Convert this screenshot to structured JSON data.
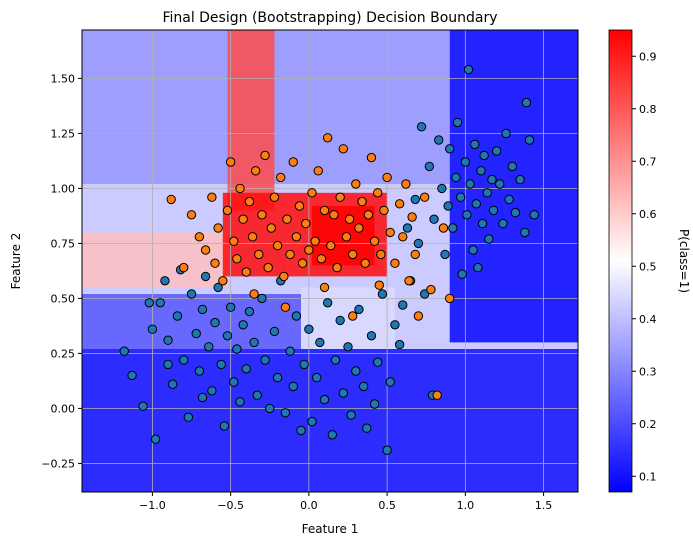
{
  "chart_data": {
    "type": "scatter",
    "title": "Final Design (Bootstrapping) Decision Boundary",
    "xlabel": "Feature 1",
    "ylabel": "Feature 2",
    "xlim": [
      -1.45,
      1.72
    ],
    "ylim": [
      -0.38,
      1.72
    ],
    "x_ticks": [
      "−1.0",
      "−0.5",
      "0.0",
      "0.5",
      "1.0",
      "1.5"
    ],
    "x_tick_values": [
      -1.0,
      -0.5,
      0.0,
      0.5,
      1.0,
      1.5
    ],
    "y_ticks": [
      "−0.25",
      "0.00",
      "0.25",
      "0.50",
      "0.75",
      "1.00",
      "1.25",
      "1.50"
    ],
    "y_tick_values": [
      -0.25,
      0.0,
      0.25,
      0.5,
      0.75,
      1.0,
      1.25,
      1.5
    ],
    "grid": true,
    "colorbar": {
      "label": "P(class=1)",
      "range": [
        0.07,
        0.95
      ],
      "ticks": [
        "0.1",
        "0.2",
        "0.3",
        "0.4",
        "0.5",
        "0.6",
        "0.7",
        "0.8",
        "0.9"
      ],
      "tick_values": [
        0.1,
        0.2,
        0.3,
        0.4,
        0.5,
        0.6,
        0.7,
        0.8,
        0.9
      ],
      "colormap": [
        "#0000ff",
        "#ffffff",
        "#ff0000"
      ]
    },
    "boundary_regions": [
      {
        "x": [
          -1.45,
          1.72
        ],
        "y": [
          -0.38,
          0.27
        ],
        "p": 0.1
      },
      {
        "x": [
          -1.45,
          -0.05
        ],
        "y": [
          0.27,
          0.52
        ],
        "p": 0.22
      },
      {
        "x": [
          0.9,
          1.72
        ],
        "y": [
          0.3,
          1.72
        ],
        "p": 0.08
      },
      {
        "x": [
          -1.45,
          0.9
        ],
        "y": [
          1.02,
          1.72
        ],
        "p": 0.33
      },
      {
        "x": [
          -0.52,
          -0.22
        ],
        "y": [
          0.9,
          1.72
        ],
        "p": 0.82
      },
      {
        "x": [
          -1.45,
          -0.52
        ],
        "y": [
          0.55,
          0.8
        ],
        "p": 0.62
      },
      {
        "x": [
          -0.55,
          0.5
        ],
        "y": [
          0.6,
          0.98
        ],
        "p": 0.93
      },
      {
        "x": [
          0.02,
          0.42
        ],
        "y": [
          0.65,
          0.92
        ],
        "p": 0.95
      },
      {
        "x": [
          -0.05,
          0.55
        ],
        "y": [
          0.27,
          0.55
        ],
        "p": 0.45
      }
    ],
    "series": [
      {
        "color": "#1f77b4",
        "points": [
          [
            -1.18,
            0.26
          ],
          [
            -1.13,
            0.15
          ],
          [
            -1.06,
            0.01
          ],
          [
            -0.98,
            -0.14
          ],
          [
            -1.0,
            0.36
          ],
          [
            -0.95,
            0.48
          ],
          [
            -0.92,
            0.58
          ],
          [
            -0.9,
            0.31
          ],
          [
            -0.87,
            0.11
          ],
          [
            -0.84,
            0.42
          ],
          [
            -0.82,
            0.63
          ],
          [
            -0.8,
            0.22
          ],
          [
            -0.77,
            -0.04
          ],
          [
            -0.75,
            0.52
          ],
          [
            -0.72,
            0.34
          ],
          [
            -0.7,
            0.17
          ],
          [
            -0.68,
            0.45
          ],
          [
            -0.66,
            0.6
          ],
          [
            -0.64,
            0.28
          ],
          [
            -0.62,
            0.08
          ],
          [
            -0.6,
            0.39
          ],
          [
            -0.58,
            0.55
          ],
          [
            -0.56,
            0.2
          ],
          [
            -0.54,
            -0.08
          ],
          [
            -0.52,
            0.33
          ],
          [
            -0.5,
            0.46
          ],
          [
            -0.48,
            0.12
          ],
          [
            -0.46,
            0.27
          ],
          [
            -0.44,
            0.03
          ],
          [
            -0.42,
            0.38
          ],
          [
            -0.4,
            0.18
          ],
          [
            -0.38,
            0.44
          ],
          [
            -0.35,
            0.3
          ],
          [
            -0.33,
            0.06
          ],
          [
            -0.3,
            0.5
          ],
          [
            -0.28,
            0.22
          ],
          [
            -0.25,
            0.0
          ],
          [
            -0.22,
            0.35
          ],
          [
            -0.2,
            0.14
          ],
          [
            -0.18,
            0.58
          ],
          [
            -0.15,
            -0.02
          ],
          [
            -0.12,
            0.26
          ],
          [
            -0.1,
            0.1
          ],
          [
            -0.08,
            0.42
          ],
          [
            -0.05,
            -0.1
          ],
          [
            -0.03,
            0.2
          ],
          [
            0.0,
            0.36
          ],
          [
            0.02,
            -0.06
          ],
          [
            0.05,
            0.14
          ],
          [
            0.07,
            0.3
          ],
          [
            0.1,
            0.04
          ],
          [
            0.12,
            0.48
          ],
          [
            0.15,
            -0.12
          ],
          [
            0.17,
            0.22
          ],
          [
            0.2,
            0.4
          ],
          [
            0.22,
            0.07
          ],
          [
            0.25,
            0.28
          ],
          [
            0.27,
            -0.03
          ],
          [
            0.3,
            0.17
          ],
          [
            0.32,
            0.45
          ],
          [
            0.35,
            0.1
          ],
          [
            0.37,
            -0.09
          ],
          [
            0.4,
            0.33
          ],
          [
            0.42,
            0.02
          ],
          [
            0.44,
            0.21
          ],
          [
            0.47,
            0.52
          ],
          [
            0.5,
            -0.19
          ],
          [
            0.52,
            0.12
          ],
          [
            0.55,
            0.38
          ],
          [
            0.58,
            0.29
          ],
          [
            0.6,
            0.47
          ],
          [
            0.63,
            0.82
          ],
          [
            0.65,
            0.58
          ],
          [
            0.68,
            0.95
          ],
          [
            0.7,
            0.75
          ],
          [
            0.72,
            1.28
          ],
          [
            0.74,
            0.52
          ],
          [
            0.77,
            1.1
          ],
          [
            0.79,
            0.06
          ],
          [
            0.8,
            0.86
          ],
          [
            0.83,
            1.22
          ],
          [
            0.85,
            1.0
          ],
          [
            0.87,
            0.7
          ],
          [
            0.89,
            0.92
          ],
          [
            0.9,
            1.18
          ],
          [
            0.92,
            0.82
          ],
          [
            0.94,
            1.05
          ],
          [
            0.95,
            1.3
          ],
          [
            0.97,
            0.96
          ],
          [
            0.98,
            0.61
          ],
          [
            1.0,
            1.12
          ],
          [
            1.01,
            0.88
          ],
          [
            1.02,
            1.54
          ],
          [
            1.03,
            1.02
          ],
          [
            1.05,
            0.72
          ],
          [
            1.06,
            1.2
          ],
          [
            1.07,
            0.93
          ],
          [
            1.08,
            0.64
          ],
          [
            1.1,
            1.08
          ],
          [
            1.11,
            0.84
          ],
          [
            1.12,
            1.15
          ],
          [
            1.14,
            0.98
          ],
          [
            1.15,
            0.77
          ],
          [
            1.17,
            1.04
          ],
          [
            1.18,
            0.9
          ],
          [
            1.2,
            1.17
          ],
          [
            1.22,
            1.02
          ],
          [
            1.24,
            0.84
          ],
          [
            1.26,
            1.25
          ],
          [
            1.28,
            0.95
          ],
          [
            1.3,
            1.1
          ],
          [
            1.32,
            0.89
          ],
          [
            1.35,
            1.04
          ],
          [
            1.38,
            0.8
          ],
          [
            1.39,
            1.39
          ],
          [
            1.41,
            1.22
          ],
          [
            1.44,
            0.88
          ],
          [
            -1.02,
            0.48
          ],
          [
            -0.68,
            0.05
          ],
          [
            -0.9,
            0.2
          ]
        ]
      },
      {
        "color": "#ff7f0e",
        "points": [
          [
            -0.88,
            0.95
          ],
          [
            -0.75,
            0.88
          ],
          [
            -0.7,
            0.78
          ],
          [
            -0.66,
            0.72
          ],
          [
            -0.62,
            0.96
          ],
          [
            -0.6,
            0.66
          ],
          [
            -0.58,
            0.82
          ],
          [
            -0.55,
            0.58
          ],
          [
            -0.52,
            0.9
          ],
          [
            -0.5,
            1.12
          ],
          [
            -0.48,
            0.76
          ],
          [
            -0.46,
            0.68
          ],
          [
            -0.44,
            1.0
          ],
          [
            -0.42,
            0.86
          ],
          [
            -0.4,
            0.62
          ],
          [
            -0.38,
            0.94
          ],
          [
            -0.36,
            0.78
          ],
          [
            -0.34,
            1.08
          ],
          [
            -0.32,
            0.7
          ],
          [
            -0.3,
            0.88
          ],
          [
            -0.28,
            1.15
          ],
          [
            -0.26,
            0.64
          ],
          [
            -0.24,
            0.82
          ],
          [
            -0.22,
            0.96
          ],
          [
            -0.2,
            0.74
          ],
          [
            -0.18,
            1.05
          ],
          [
            -0.16,
            0.6
          ],
          [
            -0.14,
            0.86
          ],
          [
            -0.12,
            0.7
          ],
          [
            -0.1,
            1.12
          ],
          [
            -0.08,
            0.78
          ],
          [
            -0.06,
            0.92
          ],
          [
            -0.04,
            0.66
          ],
          [
            -0.02,
            0.84
          ],
          [
            0.0,
            0.72
          ],
          [
            0.02,
            0.98
          ],
          [
            0.04,
            0.76
          ],
          [
            0.06,
            1.08
          ],
          [
            0.08,
            0.68
          ],
          [
            0.1,
            0.9
          ],
          [
            0.12,
            1.23
          ],
          [
            0.14,
            0.74
          ],
          [
            0.16,
            0.88
          ],
          [
            0.18,
            0.64
          ],
          [
            0.2,
            0.96
          ],
          [
            0.22,
            1.18
          ],
          [
            0.24,
            0.78
          ],
          [
            0.26,
            0.86
          ],
          [
            0.28,
            0.7
          ],
          [
            0.3,
            1.02
          ],
          [
            0.32,
            0.82
          ],
          [
            0.34,
            0.94
          ],
          [
            0.36,
            0.66
          ],
          [
            0.38,
            0.88
          ],
          [
            0.4,
            1.14
          ],
          [
            0.42,
            0.76
          ],
          [
            0.44,
            0.98
          ],
          [
            0.46,
            0.7
          ],
          [
            0.48,
            0.9
          ],
          [
            0.5,
            1.05
          ],
          [
            0.52,
            0.8
          ],
          [
            0.55,
            0.66
          ],
          [
            0.58,
            0.93
          ],
          [
            0.6,
            0.78
          ],
          [
            0.62,
            1.02
          ],
          [
            0.64,
            0.58
          ],
          [
            0.66,
            0.87
          ],
          [
            0.68,
            0.7
          ],
          [
            0.7,
            0.42
          ],
          [
            0.74,
            0.96
          ],
          [
            0.78,
            0.54
          ],
          [
            0.82,
            0.06
          ],
          [
            0.86,
            0.82
          ],
          [
            0.9,
            0.5
          ],
          [
            -0.8,
            0.64
          ],
          [
            -0.35,
            0.52
          ],
          [
            -0.15,
            0.46
          ],
          [
            0.1,
            0.55
          ],
          [
            0.28,
            0.42
          ],
          [
            0.45,
            0.56
          ]
        ]
      }
    ]
  }
}
